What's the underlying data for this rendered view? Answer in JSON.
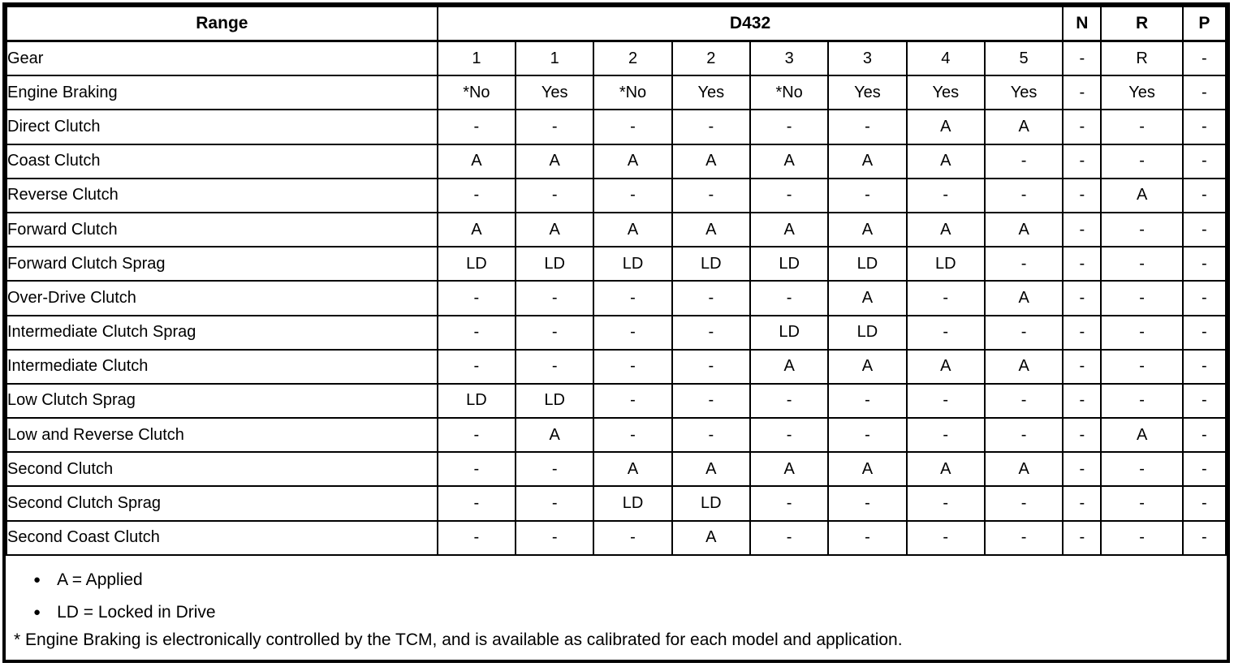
{
  "table": {
    "header": {
      "range_label": "Range",
      "d432_label": "D432",
      "n_label": "N",
      "r_label": "R",
      "p_label": "P"
    },
    "rows": [
      {
        "label": "Gear",
        "values": [
          "1",
          "1",
          "2",
          "2",
          "3",
          "3",
          "4",
          "5",
          "-",
          "R",
          "-"
        ]
      },
      {
        "label": "Engine Braking",
        "values": [
          "*No",
          "Yes",
          "*No",
          "Yes",
          "*No",
          "Yes",
          "Yes",
          "Yes",
          "-",
          "Yes",
          "-"
        ]
      },
      {
        "label": "Direct Clutch",
        "values": [
          "-",
          "-",
          "-",
          "-",
          "-",
          "-",
          "A",
          "A",
          "-",
          "-",
          "-"
        ]
      },
      {
        "label": "Coast Clutch",
        "values": [
          "A",
          "A",
          "A",
          "A",
          "A",
          "A",
          "A",
          "-",
          "-",
          "-",
          "-"
        ]
      },
      {
        "label": "Reverse Clutch",
        "values": [
          "-",
          "-",
          "-",
          "-",
          "-",
          "-",
          "-",
          "-",
          "-",
          "A",
          "-"
        ]
      },
      {
        "label": "Forward Clutch",
        "values": [
          "A",
          "A",
          "A",
          "A",
          "A",
          "A",
          "A",
          "A",
          "-",
          "-",
          "-"
        ]
      },
      {
        "label": "Forward Clutch Sprag",
        "values": [
          "LD",
          "LD",
          "LD",
          "LD",
          "LD",
          "LD",
          "LD",
          "-",
          "-",
          "-",
          "-"
        ]
      },
      {
        "label": "Over-Drive Clutch",
        "values": [
          "-",
          "-",
          "-",
          "-",
          "-",
          "A",
          "-",
          "A",
          "-",
          "-",
          "-"
        ]
      },
      {
        "label": "Intermediate Clutch Sprag",
        "values": [
          "-",
          "-",
          "-",
          "-",
          "LD",
          "LD",
          "-",
          "-",
          "-",
          "-",
          "-"
        ]
      },
      {
        "label": "Intermediate Clutch",
        "values": [
          "-",
          "-",
          "-",
          "-",
          "A",
          "A",
          "A",
          "A",
          "-",
          "-",
          "-"
        ]
      },
      {
        "label": "Low Clutch Sprag",
        "values": [
          "LD",
          "LD",
          "-",
          "-",
          "-",
          "-",
          "-",
          "-",
          "-",
          "-",
          "-"
        ]
      },
      {
        "label": "Low and Reverse Clutch",
        "values": [
          "-",
          "A",
          "-",
          "-",
          "-",
          "-",
          "-",
          "-",
          "-",
          "A",
          "-"
        ]
      },
      {
        "label": "Second Clutch",
        "values": [
          "-",
          "-",
          "A",
          "A",
          "A",
          "A",
          "A",
          "A",
          "-",
          "-",
          "-"
        ]
      },
      {
        "label": "Second Clutch Sprag",
        "values": [
          "-",
          "-",
          "LD",
          "LD",
          "-",
          "-",
          "-",
          "-",
          "-",
          "-",
          "-"
        ]
      },
      {
        "label": "Second Coast Clutch",
        "values": [
          "-",
          "-",
          "-",
          "A",
          "-",
          "-",
          "-",
          "-",
          "-",
          "-",
          "-"
        ]
      }
    ],
    "legend": [
      "A = Applied",
      "LD = Locked in Drive"
    ],
    "legend_bullet": "●",
    "footnote": "* Engine Braking is electronically controlled by the TCM, and is available as calibrated for each model and application.",
    "colors": {
      "border": "#000000",
      "background": "#ffffff",
      "text": "#000000"
    }
  }
}
